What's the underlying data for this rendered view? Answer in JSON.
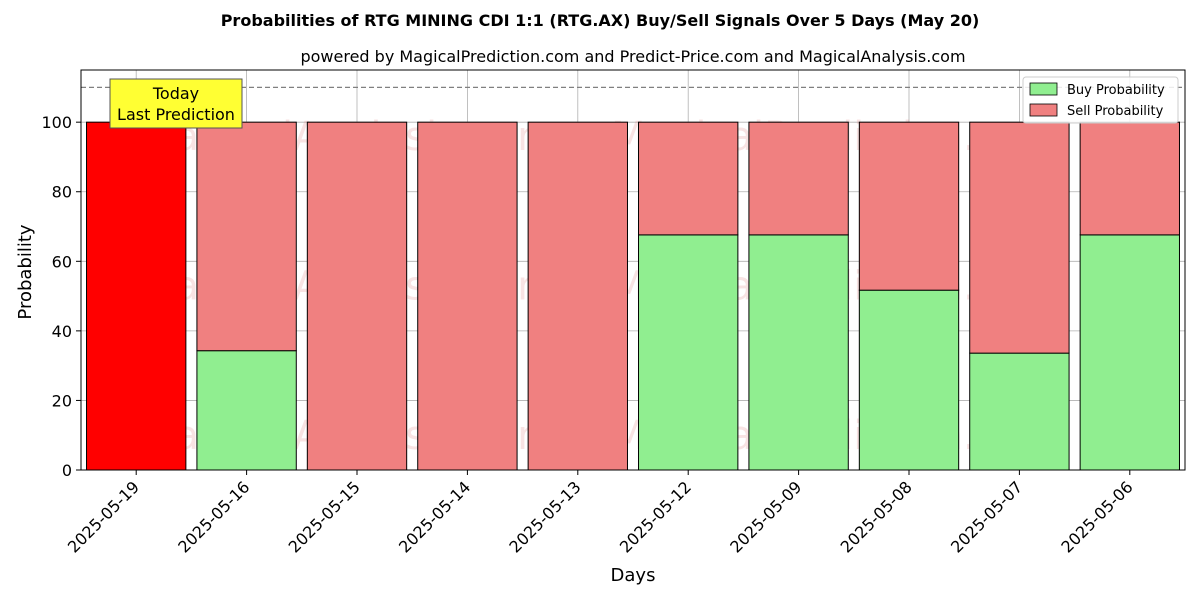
{
  "chart_data": {
    "type": "bar",
    "stacked": true,
    "title": "Probabilities of RTG MINING CDI 1:1 (RTG.AX) Buy/Sell Signals Over 5 Days (May 20)",
    "subtitle": "powered by MagicalPrediction.com and Predict-Price.com and MagicalAnalysis.com",
    "xlabel": "Days",
    "ylabel": "Probability",
    "ylim": [
      0,
      115
    ],
    "yticks": [
      0,
      20,
      40,
      60,
      80,
      100
    ],
    "grid": true,
    "legend_position": "top-right",
    "categories": [
      "2025-05-19",
      "2025-05-16",
      "2025-05-15",
      "2025-05-14",
      "2025-05-13",
      "2025-05-12",
      "2025-05-09",
      "2025-05-08",
      "2025-05-07",
      "2025-05-06"
    ],
    "series": [
      {
        "name": "Buy Probability",
        "color": "#90ee90",
        "values": [
          0,
          34.3,
          0,
          0,
          0,
          67.6,
          67.6,
          51.7,
          33.6,
          67.6
        ]
      },
      {
        "name": "Sell Probability",
        "color": "#f08080",
        "values": [
          100,
          65.7,
          100,
          100,
          100,
          32.4,
          32.4,
          48.3,
          66.4,
          32.4
        ]
      }
    ],
    "highlight": {
      "index": 0,
      "color": "#ff0000"
    },
    "reference_line": {
      "y": 110,
      "style": "dashed",
      "color": "#808080"
    },
    "annotation": {
      "lines": [
        "Today",
        "Last Prediction"
      ],
      "background": "#ffff33"
    },
    "watermarks": [
      "MagicalAnalysis.com",
      "MagicalPrediction.com"
    ]
  }
}
